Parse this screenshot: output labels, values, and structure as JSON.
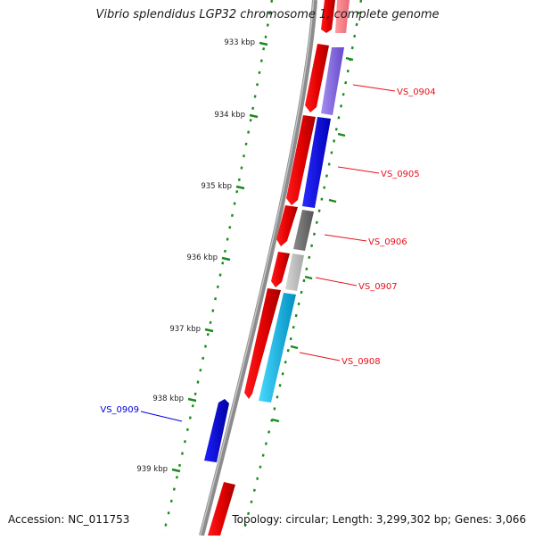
{
  "title": "Vibrio splendidus LGP32 chromosome 1, complete genome",
  "accession": "Accession: NC_011753",
  "summary": "Topology: circular; Length: 3,299,302 bp; Genes: 3,066",
  "ticks": [
    "933 kbp",
    "934 kbp",
    "935 kbp",
    "936 kbp",
    "937 kbp",
    "938 kbp",
    "939 kbp"
  ],
  "gene_labels": [
    {
      "name": "VS_0904",
      "color": "#e8101a"
    },
    {
      "name": "VS_0905",
      "color": "#e8101a"
    },
    {
      "name": "VS_0906",
      "color": "#e8101a"
    },
    {
      "name": "VS_0907",
      "color": "#e8101a"
    },
    {
      "name": "VS_0908",
      "color": "#e8101a"
    },
    {
      "name": "VS_0909",
      "color": "#0000e0"
    }
  ],
  "colors": {
    "backbone": "#7a7a7a",
    "tick": "#1a8a1a",
    "cds": "#ff0000",
    "cds_dark": "#b80000"
  }
}
